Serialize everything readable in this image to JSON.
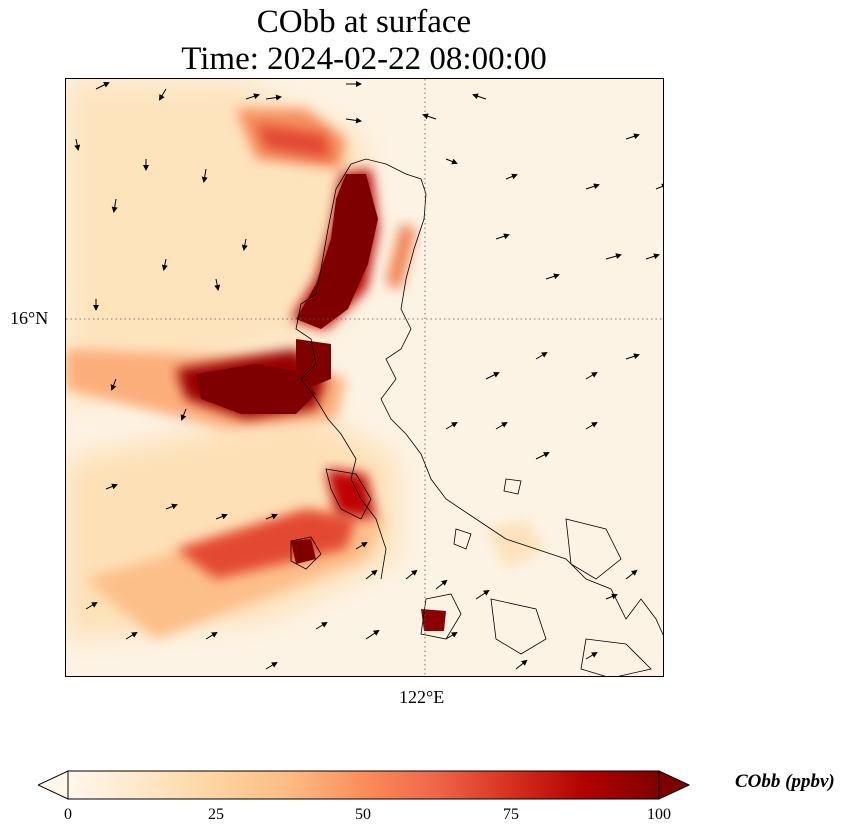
{
  "title": {
    "line1": "CObb at surface",
    "line2": "Time: 2024-02-22 08:00:00"
  },
  "axes": {
    "lat_label": "16°N",
    "lon_label": "122°E",
    "gridlines": true
  },
  "colorbar": {
    "label": "CObb (ppbv)",
    "ticks": [
      "0",
      "25",
      "50",
      "75",
      "100"
    ],
    "colormap": "OrRd",
    "range": [
      0,
      100
    ],
    "extend": "both"
  },
  "colors": {
    "low": "#fff7ec",
    "mid": "#fc8d59",
    "high": "#7f0000",
    "coastline": "#000000"
  }
}
